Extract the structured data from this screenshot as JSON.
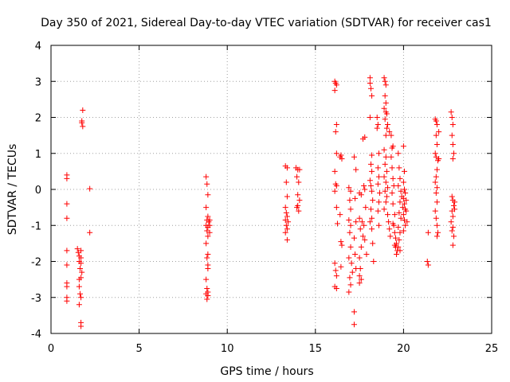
{
  "chart_data": {
    "type": "scatter",
    "title": "Day 350 of 2021, Sidereal Day-to-day VTEC variation (SDTVAR) for receiver cas1",
    "xlabel": "GPS time / hours",
    "ylabel": "SDTVAR / TECUs",
    "xlim": [
      0,
      25
    ],
    "ylim": [
      -4,
      4
    ],
    "xticks": [
      "0",
      "5",
      "10",
      "15",
      "20",
      "25"
    ],
    "yticks": [
      "-4",
      "-3",
      "-2",
      "-1",
      "0",
      "1",
      "2",
      "3",
      "4"
    ],
    "grid": true,
    "marker": "+",
    "color": "#ff0000",
    "series": [
      {
        "name": "SDTVAR",
        "points": [
          [
            0.9,
            0.4
          ],
          [
            0.9,
            0.3
          ],
          [
            0.9,
            -0.4
          ],
          [
            0.9,
            -0.8
          ],
          [
            0.9,
            -1.7
          ],
          [
            0.9,
            -2.1
          ],
          [
            0.9,
            -2.6
          ],
          [
            0.9,
            -2.7
          ],
          [
            0.9,
            -3.0
          ],
          [
            0.9,
            -3.1
          ],
          [
            1.5,
            -1.65
          ],
          [
            1.55,
            -1.75
          ],
          [
            1.6,
            -1.85
          ],
          [
            1.6,
            -2.0
          ],
          [
            1.65,
            -2.2
          ],
          [
            1.6,
            -2.5
          ],
          [
            1.6,
            -2.7
          ],
          [
            1.65,
            -2.9
          ],
          [
            1.6,
            -3.2
          ],
          [
            1.7,
            -3.7
          ],
          [
            1.7,
            -3.8
          ],
          [
            1.7,
            -1.9
          ],
          [
            1.7,
            -2.05
          ],
          [
            1.75,
            -2.3
          ],
          [
            1.7,
            -1.7
          ],
          [
            1.7,
            -2.45
          ],
          [
            1.7,
            -3.0
          ],
          [
            1.75,
            1.9
          ],
          [
            1.75,
            1.85
          ],
          [
            1.8,
            1.75
          ],
          [
            1.8,
            2.2
          ],
          [
            2.2,
            0.02
          ],
          [
            2.2,
            -1.2
          ],
          [
            8.8,
            0.35
          ],
          [
            8.85,
            0.15
          ],
          [
            8.9,
            -0.15
          ],
          [
            8.8,
            -0.5
          ],
          [
            8.9,
            -0.75
          ],
          [
            8.85,
            -0.85
          ],
          [
            8.95,
            -0.9
          ],
          [
            8.8,
            -1.0
          ],
          [
            8.9,
            -1.05
          ],
          [
            8.85,
            -1.15
          ],
          [
            9.0,
            -1.2
          ],
          [
            8.9,
            -1.3
          ],
          [
            8.8,
            -1.5
          ],
          [
            8.9,
            -1.8
          ],
          [
            8.85,
            -1.9
          ],
          [
            8.9,
            -2.1
          ],
          [
            8.9,
            -2.2
          ],
          [
            8.8,
            -2.5
          ],
          [
            8.85,
            -2.75
          ],
          [
            8.9,
            -2.85
          ],
          [
            8.9,
            -2.95
          ],
          [
            8.85,
            -3.05
          ],
          [
            8.8,
            -2.9
          ],
          [
            9.0,
            -1.0
          ],
          [
            9.0,
            -0.85
          ],
          [
            13.3,
            0.65
          ],
          [
            13.4,
            0.6
          ],
          [
            13.35,
            0.2
          ],
          [
            13.4,
            -0.2
          ],
          [
            13.3,
            -0.5
          ],
          [
            13.35,
            -0.65
          ],
          [
            13.4,
            -0.75
          ],
          [
            13.3,
            -0.85
          ],
          [
            13.35,
            -1.0
          ],
          [
            13.4,
            -1.1
          ],
          [
            13.3,
            -1.2
          ],
          [
            13.4,
            -1.4
          ],
          [
            13.45,
            -0.9
          ],
          [
            13.9,
            0.6
          ],
          [
            14.0,
            0.55
          ],
          [
            14.1,
            0.55
          ],
          [
            13.95,
            0.35
          ],
          [
            14.05,
            0.2
          ],
          [
            14.0,
            -0.15
          ],
          [
            14.1,
            -0.3
          ],
          [
            13.95,
            -0.5
          ],
          [
            14.05,
            -0.6
          ],
          [
            14.0,
            -0.45
          ],
          [
            16.1,
            3.0
          ],
          [
            16.15,
            2.95
          ],
          [
            16.2,
            2.9
          ],
          [
            16.1,
            2.75
          ],
          [
            16.2,
            1.8
          ],
          [
            16.15,
            1.6
          ],
          [
            16.2,
            1.0
          ],
          [
            16.1,
            0.5
          ],
          [
            16.15,
            0.15
          ],
          [
            16.2,
            0.1
          ],
          [
            16.1,
            -0.05
          ],
          [
            16.2,
            -0.5
          ],
          [
            16.25,
            -0.95
          ],
          [
            16.1,
            -2.05
          ],
          [
            16.15,
            -2.25
          ],
          [
            16.2,
            -2.4
          ],
          [
            16.1,
            -2.7
          ],
          [
            16.2,
            -2.75
          ],
          [
            16.4,
            0.9
          ],
          [
            16.45,
            0.95
          ],
          [
            16.5,
            0.85
          ],
          [
            16.4,
            -0.7
          ],
          [
            16.45,
            -1.45
          ],
          [
            16.5,
            -1.55
          ],
          [
            16.45,
            -2.15
          ],
          [
            16.9,
            0.05
          ],
          [
            17.0,
            -0.05
          ],
          [
            16.95,
            -0.3
          ],
          [
            17.0,
            -0.55
          ],
          [
            16.9,
            -0.85
          ],
          [
            17.0,
            -1.0
          ],
          [
            16.95,
            -1.2
          ],
          [
            17.0,
            -1.6
          ],
          [
            16.9,
            -1.9
          ],
          [
            16.95,
            -2.45
          ],
          [
            17.0,
            -2.65
          ],
          [
            16.9,
            -2.85
          ],
          [
            17.1,
            -2.3
          ],
          [
            17.05,
            -2.05
          ],
          [
            17.2,
            0.9
          ],
          [
            17.3,
            0.55
          ],
          [
            17.25,
            -0.25
          ],
          [
            17.3,
            -0.9
          ],
          [
            17.2,
            -1.35
          ],
          [
            17.25,
            -1.8
          ],
          [
            17.3,
            -2.2
          ],
          [
            17.2,
            -3.4
          ],
          [
            17.2,
            -3.75
          ],
          [
            17.5,
            -0.1
          ],
          [
            17.6,
            -0.15
          ],
          [
            17.5,
            -0.8
          ],
          [
            17.55,
            -1.1
          ],
          [
            17.6,
            -1.6
          ],
          [
            17.5,
            -1.9
          ],
          [
            17.55,
            -2.2
          ],
          [
            17.5,
            -2.4
          ],
          [
            17.6,
            -2.5
          ],
          [
            17.5,
            -2.6
          ],
          [
            17.7,
            -1.3
          ],
          [
            17.65,
            -0.9
          ],
          [
            17.7,
            1.4
          ],
          [
            17.8,
            1.45
          ],
          [
            17.75,
            0.1
          ],
          [
            17.8,
            0.0
          ],
          [
            17.85,
            -0.5
          ],
          [
            17.75,
            -1.0
          ],
          [
            17.8,
            -1.4
          ],
          [
            17.9,
            -1.8
          ],
          [
            18.1,
            3.1
          ],
          [
            18.1,
            2.95
          ],
          [
            18.15,
            2.8
          ],
          [
            18.2,
            2.6
          ],
          [
            18.1,
            2.0
          ],
          [
            18.2,
            0.95
          ],
          [
            18.15,
            0.7
          ],
          [
            18.2,
            0.5
          ],
          [
            18.1,
            0.25
          ],
          [
            18.15,
            0.1
          ],
          [
            18.2,
            -0.05
          ],
          [
            18.25,
            -0.3
          ],
          [
            18.15,
            -0.55
          ],
          [
            18.2,
            -0.8
          ],
          [
            18.1,
            -0.9
          ],
          [
            18.2,
            -1.1
          ],
          [
            18.25,
            -1.5
          ],
          [
            18.3,
            -2.0
          ],
          [
            18.5,
            2.0
          ],
          [
            18.55,
            1.8
          ],
          [
            18.5,
            1.7
          ],
          [
            18.6,
            1.0
          ],
          [
            18.55,
            0.6
          ],
          [
            18.6,
            0.35
          ],
          [
            18.55,
            0.15
          ],
          [
            18.65,
            -0.1
          ],
          [
            18.6,
            -0.35
          ],
          [
            18.55,
            -0.6
          ],
          [
            18.6,
            -1.0
          ],
          [
            18.9,
            3.1
          ],
          [
            18.95,
            3.0
          ],
          [
            19.0,
            2.9
          ],
          [
            18.95,
            2.6
          ],
          [
            19.0,
            2.4
          ],
          [
            18.9,
            2.25
          ],
          [
            19.0,
            2.15
          ],
          [
            19.05,
            2.1
          ],
          [
            18.95,
            1.95
          ],
          [
            19.1,
            1.8
          ],
          [
            19.05,
            1.7
          ],
          [
            19.0,
            1.5
          ],
          [
            18.9,
            1.1
          ],
          [
            19.0,
            0.9
          ],
          [
            18.95,
            0.7
          ],
          [
            19.05,
            0.5
          ],
          [
            18.9,
            0.35
          ],
          [
            19.0,
            0.2
          ],
          [
            19.1,
            0.05
          ],
          [
            18.95,
            -0.05
          ],
          [
            19.05,
            -0.2
          ],
          [
            19.0,
            -0.35
          ],
          [
            18.9,
            -0.55
          ],
          [
            19.1,
            -0.7
          ],
          [
            19.15,
            -0.9
          ],
          [
            19.2,
            -1.1
          ],
          [
            19.25,
            -1.3
          ],
          [
            19.2,
            1.6
          ],
          [
            19.3,
            1.5
          ],
          [
            19.3,
            0.9
          ],
          [
            19.35,
            0.6
          ],
          [
            19.4,
            0.3
          ],
          [
            19.45,
            0.1
          ],
          [
            19.35,
            -0.1
          ],
          [
            19.4,
            -0.4
          ],
          [
            19.5,
            -0.7
          ],
          [
            19.45,
            -1.0
          ],
          [
            19.5,
            -1.2
          ],
          [
            19.55,
            -1.35
          ],
          [
            19.6,
            -1.5
          ],
          [
            19.55,
            -1.6
          ],
          [
            19.65,
            -1.7
          ],
          [
            19.6,
            -1.8
          ],
          [
            19.5,
            -1.55
          ],
          [
            19.4,
            -0.95
          ],
          [
            19.35,
            1.15
          ],
          [
            19.4,
            1.2
          ],
          [
            19.7,
            1.0
          ],
          [
            19.75,
            0.6
          ],
          [
            19.8,
            0.3
          ],
          [
            19.7,
            0.1
          ],
          [
            19.85,
            -0.05
          ],
          [
            19.9,
            -0.2
          ],
          [
            19.8,
            -0.35
          ],
          [
            19.95,
            -0.5
          ],
          [
            19.75,
            -0.65
          ],
          [
            19.85,
            -0.8
          ],
          [
            19.7,
            -1.05
          ],
          [
            19.8,
            -1.2
          ],
          [
            19.75,
            -1.4
          ],
          [
            19.7,
            -1.6
          ],
          [
            19.8,
            -1.7
          ],
          [
            20.0,
            1.2
          ],
          [
            20.05,
            0.5
          ],
          [
            20.0,
            0.2
          ],
          [
            20.05,
            0.0
          ],
          [
            20.1,
            -0.1
          ],
          [
            20.0,
            -0.25
          ],
          [
            20.05,
            -0.4
          ],
          [
            20.1,
            -0.55
          ],
          [
            20.0,
            -0.7
          ],
          [
            20.05,
            -0.85
          ],
          [
            20.1,
            -1.0
          ],
          [
            20.0,
            -1.15
          ],
          [
            20.15,
            -0.3
          ],
          [
            20.15,
            -0.6
          ],
          [
            20.2,
            -0.9
          ],
          [
            21.4,
            -1.2
          ],
          [
            21.35,
            -2.0
          ],
          [
            21.4,
            -2.1
          ],
          [
            21.8,
            1.95
          ],
          [
            21.85,
            1.9
          ],
          [
            21.9,
            1.8
          ],
          [
            21.85,
            1.5
          ],
          [
            21.9,
            1.25
          ],
          [
            21.8,
            1.0
          ],
          [
            21.85,
            0.9
          ],
          [
            21.95,
            0.8
          ],
          [
            21.9,
            0.55
          ],
          [
            21.85,
            0.35
          ],
          [
            21.8,
            0.2
          ],
          [
            21.9,
            0.05
          ],
          [
            21.85,
            -0.1
          ],
          [
            21.9,
            -0.35
          ],
          [
            21.8,
            -0.6
          ],
          [
            21.85,
            -0.8
          ],
          [
            21.9,
            -1.0
          ],
          [
            21.95,
            -1.2
          ],
          [
            21.9,
            -1.3
          ],
          [
            22.0,
            1.6
          ],
          [
            22.0,
            0.85
          ],
          [
            22.7,
            2.15
          ],
          [
            22.75,
            2.0
          ],
          [
            22.8,
            1.8
          ],
          [
            22.75,
            1.5
          ],
          [
            22.8,
            1.25
          ],
          [
            22.85,
            1.0
          ],
          [
            22.8,
            0.85
          ],
          [
            22.75,
            -0.2
          ],
          [
            22.8,
            -0.3
          ],
          [
            22.85,
            -0.45
          ],
          [
            22.75,
            -0.6
          ],
          [
            22.8,
            -0.75
          ],
          [
            22.7,
            -0.9
          ],
          [
            22.8,
            -1.05
          ],
          [
            22.75,
            -1.15
          ],
          [
            22.85,
            -1.3
          ],
          [
            22.8,
            -1.55
          ],
          [
            22.9,
            -0.55
          ],
          [
            22.9,
            -0.35
          ]
        ]
      }
    ]
  }
}
